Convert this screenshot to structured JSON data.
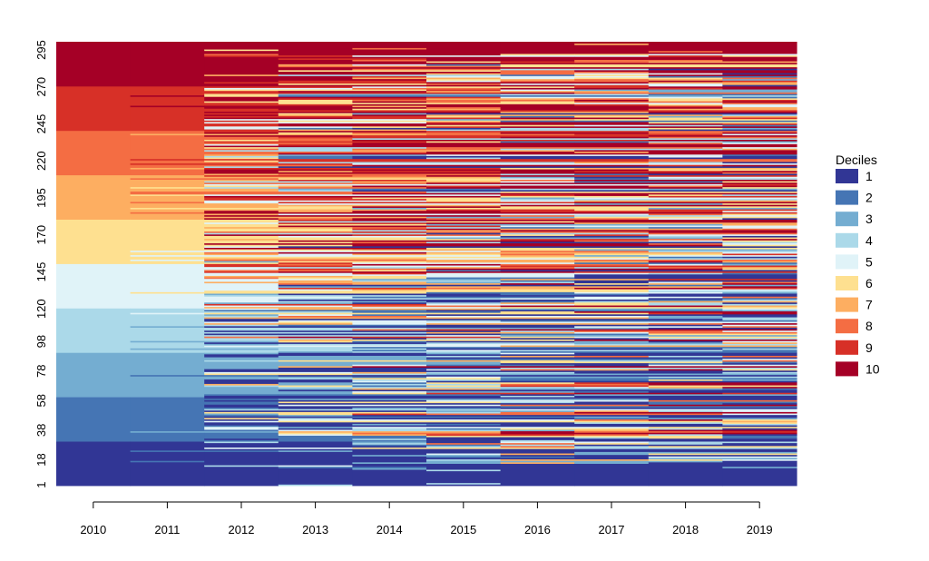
{
  "chart_data": {
    "type": "heatmap",
    "title": "",
    "xlabel": "",
    "ylabel": "",
    "x_categories": [
      "2010",
      "2011",
      "2012",
      "2013",
      "2014",
      "2015",
      "2016",
      "2017",
      "2018",
      "2019"
    ],
    "y_tick_labels": [
      "1",
      "18",
      "38",
      "58",
      "78",
      "98",
      "120",
      "145",
      "170",
      "195",
      "220",
      "245",
      "270",
      "295"
    ],
    "y_range": [
      1,
      300
    ],
    "grid": false,
    "legend": {
      "title": "Deciles",
      "position": "right",
      "entries": [
        {
          "label": "1",
          "color": "#313695"
        },
        {
          "label": "2",
          "color": "#4575b4"
        },
        {
          "label": "3",
          "color": "#74add1"
        },
        {
          "label": "4",
          "color": "#abd9e9"
        },
        {
          "label": "5",
          "color": "#e0f3f8"
        },
        {
          "label": "6",
          "color": "#fee090"
        },
        {
          "label": "7",
          "color": "#fdae61"
        },
        {
          "label": "8",
          "color": "#f46d43"
        },
        {
          "label": "9",
          "color": "#d73027"
        },
        {
          "label": "10",
          "color": "#a50026"
        }
      ]
    },
    "column_2010_deciles_bottom_to_top": [
      1,
      2,
      3,
      4,
      5,
      6,
      7,
      8,
      9,
      10
    ]
  }
}
